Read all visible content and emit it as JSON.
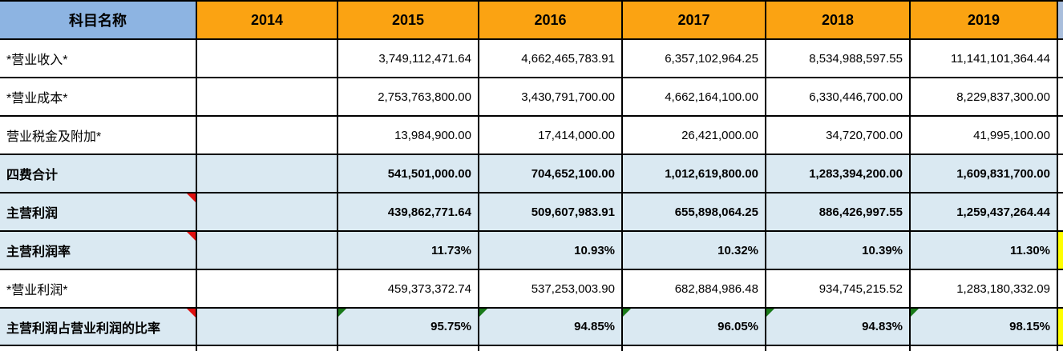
{
  "header": {
    "subject_label": "科目名称",
    "years": [
      "2014",
      "2015",
      "2016",
      "2017",
      "2018",
      "2019"
    ]
  },
  "rows": [
    {
      "label": "*营业收入*",
      "emphasis": false,
      "comment_marker": false,
      "green_flags": [],
      "values": [
        "",
        "3,749,112,471.64",
        "4,662,465,783.91",
        "6,357,102,964.25",
        "8,534,988,597.55",
        "11,141,101,364.44"
      ]
    },
    {
      "label": "*营业成本*",
      "emphasis": false,
      "comment_marker": false,
      "green_flags": [],
      "values": [
        "",
        "2,753,763,800.00",
        "3,430,791,700.00",
        "4,662,164,100.00",
        "6,330,446,700.00",
        "8,229,837,300.00"
      ]
    },
    {
      "label": "营业税金及附加*",
      "emphasis": false,
      "comment_marker": false,
      "green_flags": [],
      "values": [
        "",
        "13,984,900.00",
        "17,414,000.00",
        "26,421,000.00",
        "34,720,700.00",
        "41,995,100.00"
      ]
    },
    {
      "label": "四费合计",
      "emphasis": true,
      "comment_marker": false,
      "green_flags": [],
      "values": [
        "",
        "541,501,000.00",
        "704,652,100.00",
        "1,012,619,800.00",
        "1,283,394,200.00",
        "1,609,831,700.00"
      ]
    },
    {
      "label": "主营利润",
      "emphasis": true,
      "comment_marker": true,
      "green_flags": [],
      "values": [
        "",
        "439,862,771.64",
        "509,607,983.91",
        "655,898,064.25",
        "886,426,997.55",
        "1,259,437,264.44"
      ]
    },
    {
      "label": "主营利润率",
      "emphasis": true,
      "comment_marker": true,
      "green_flags": [],
      "values": [
        "",
        "11.73%",
        "10.93%",
        "10.32%",
        "10.39%",
        "11.30%"
      ]
    },
    {
      "label": "*营业利润*",
      "emphasis": false,
      "comment_marker": false,
      "green_flags": [],
      "values": [
        "",
        "459,373,372.74",
        "537,253,003.90",
        "682,884,986.48",
        "934,745,215.52",
        "1,283,180,332.09"
      ]
    },
    {
      "label": "主营利润占营业利润的比率",
      "emphasis": true,
      "comment_marker": true,
      "green_flags": [
        1,
        2,
        3,
        4,
        5
      ],
      "values": [
        "",
        "95.75%",
        "94.85%",
        "96.05%",
        "94.83%",
        "98.15%"
      ]
    }
  ],
  "extra_column": {
    "highlight_rows": [
      5,
      7
    ]
  },
  "colors": {
    "subject_header_bg": "#8DB4E2",
    "year_header_bg": "#FBA312",
    "emphasis_row_bg": "#DAE9F2",
    "extra_header_bg": "#A9BEDC",
    "extra_highlight_bg": "#FFFF00",
    "border": "#000000",
    "comment_red": "#DF1010",
    "flag_green": "#1A7A1A"
  }
}
